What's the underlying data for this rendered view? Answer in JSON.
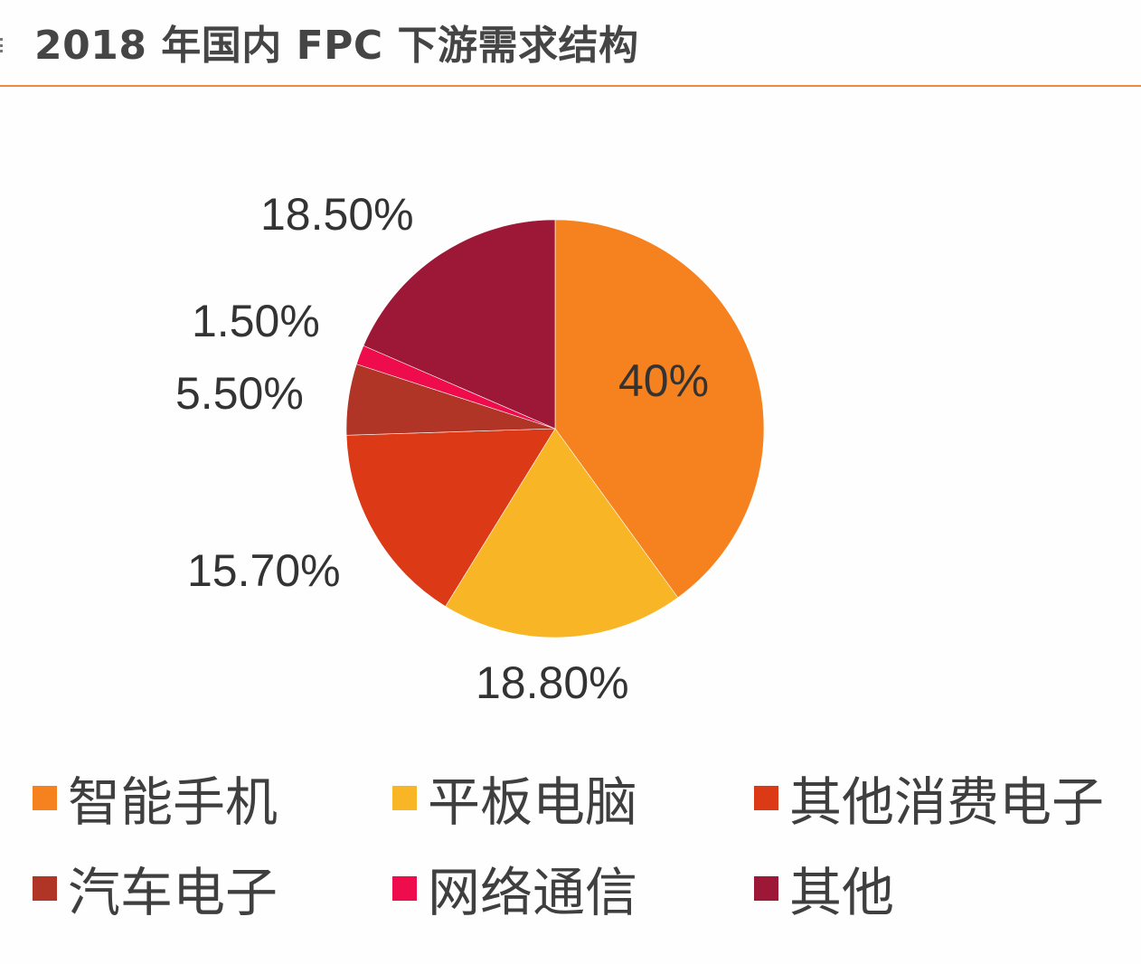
{
  "title": "2018 年国内 FPC 下游需求结构",
  "chart_data": {
    "type": "pie",
    "title": "2018 年国内 FPC 下游需求结构",
    "categories": [
      "智能手机",
      "平板电脑",
      "其他消费电子",
      "汽车电子",
      "网络通信",
      "其他"
    ],
    "values": [
      40,
      18.8,
      15.7,
      5.5,
      1.5,
      18.5
    ],
    "labels": [
      "40%",
      "18.80%",
      "15.70%",
      "5.50%",
      "1.50%",
      "18.50%"
    ],
    "colors": [
      "#f5821f",
      "#f8b526",
      "#dc3a16",
      "#b03526",
      "#ef0c4c",
      "#9c1836"
    ],
    "start_angle": "12 o'clock, clockwise",
    "legend_position": "bottom"
  },
  "legend": [
    {
      "label": "智能手机",
      "color": "#f5821f"
    },
    {
      "label": "平板电脑",
      "color": "#f8b526"
    },
    {
      "label": "其他消费电子",
      "color": "#dc3a16"
    },
    {
      "label": "汽车电子",
      "color": "#b03526"
    },
    {
      "label": "网络通信",
      "color": "#ef0c4c"
    },
    {
      "label": "其他",
      "color": "#9c1836"
    }
  ]
}
